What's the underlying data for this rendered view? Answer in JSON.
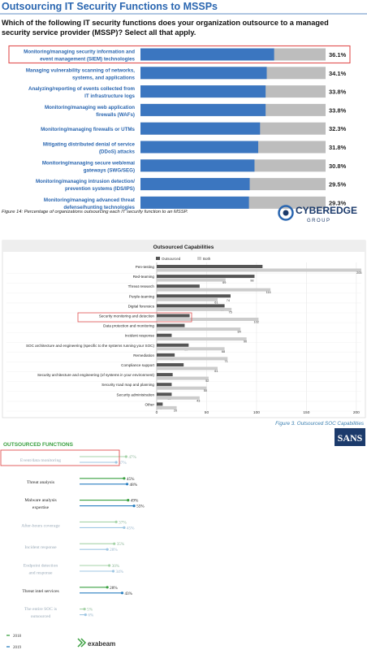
{
  "section1": {
    "title": "Outsourcing IT Security Functions to MSSPs",
    "question": [
      "Which of the following IT security functions does your organization outsource to a managed",
      "security service provider (MSSP)? Select all that apply."
    ],
    "caption": "Figure 14: Percentage of organizations outsourcing each IT security function to an MSSP.",
    "logo_text": "CYBEREDGE",
    "logo_sub": "GROUP",
    "colors": {
      "bar": "#3b76c0",
      "track": "#bdbdbd",
      "title": "#2a66b0",
      "highlight": "#e05050"
    }
  },
  "section2": {
    "title": "Outsourced Capabilities",
    "legend": [
      "Outsourced",
      "Both"
    ],
    "caption": "Figure 3. Outsourced SOC Capabilities",
    "logo_text": "SANS",
    "colors": {
      "outsourced": "#555555",
      "both": "#cccccc",
      "caption": "#3a7fb0",
      "logo": "#1b3a6b"
    }
  },
  "section3": {
    "title": "OUTSOURCED FUNCTIONS",
    "legend": [
      "2018",
      "2019"
    ],
    "brand": "exabeam",
    "colors": {
      "title": "#3aa040",
      "y2018": "#3aa040",
      "y2019": "#2a7fc0",
      "faded": "#9fc7e3"
    }
  },
  "chart_data": [
    {
      "type": "bar",
      "orientation": "horizontal",
      "categories": [
        [
          "Monitoring/managing security information and",
          "event management (SIEM) technologies"
        ],
        [
          "Managing vulnerability scanning of networks,",
          "systems, and applications"
        ],
        [
          "Analyzing/reporting of events collected from",
          "IT infrastructure logs"
        ],
        [
          "Monitoring/managing web application",
          "firewalls (WAFs)"
        ],
        [
          "Monitoring/managing firewalls or UTMs"
        ],
        [
          "Mitigating distributed denial of service",
          "(DDoS) attacks"
        ],
        [
          "Monitoring/managing secure web/emai",
          "gateways (SWG/SEG)"
        ],
        [
          "Monitoring/managing intrusion detection/",
          "prevention systems (IDS/IPS)"
        ],
        [
          "Monitoring/managing advanced threat",
          "defense/hunting technologies"
        ]
      ],
      "values": [
        36.1,
        34.1,
        33.8,
        33.8,
        32.3,
        31.8,
        30.8,
        29.5,
        29.3
      ],
      "labels": [
        "36.1%",
        "34.1%",
        "33.8%",
        "33.8%",
        "32.3%",
        "31.8%",
        "30.8%",
        "29.5%",
        "29.3%"
      ],
      "xlim": [
        0,
        50
      ],
      "highlight_index": 0
    },
    {
      "type": "bar",
      "orientation": "horizontal",
      "title": "Outsourced Capabilities",
      "categories": [
        "Pen-testing",
        "Red-teaming",
        "Threat research",
        "Purple-teaming",
        "Digital forensics",
        "Security monitoring and detection",
        "Data protection and monitoring",
        "Incident response",
        "SOC architecture and engineering (specific to the systems running your SOC)",
        "Remediation",
        "Compliance support",
        "Security architecture and engineering (of systems in your environment)",
        "Security road map and planning",
        "Security administration",
        "Other"
      ],
      "series": [
        {
          "name": "Outsourced",
          "values": [
            106,
            98,
            43,
            74,
            68,
            33,
            28,
            15,
            32,
            18,
            27,
            16,
            15,
            15,
            6
          ]
        },
        {
          "name": "Both",
          "values": [
            205,
            69,
            114,
            61,
            75,
            102,
            84,
            90,
            68,
            71,
            61,
            52,
            50,
            43,
            20
          ]
        }
      ],
      "xticks": [
        "0",
        "50",
        "100",
        "150",
        "200"
      ],
      "xlim": [
        0,
        205
      ],
      "highlight_index": 5
    },
    {
      "type": "bar",
      "orientation": "horizontal",
      "title": "OUTSOURCED FUNCTIONS",
      "categories": [
        [
          "Event/data monitoring"
        ],
        [
          "Threat analysis"
        ],
        [
          "Malware analysis",
          "expertise"
        ],
        [
          "After-hours coverage"
        ],
        [
          "Incident response"
        ],
        [
          "Endpoint detection",
          "and response"
        ],
        [
          "Threat intel services"
        ],
        [
          "The entire SOC is",
          "outsourced"
        ]
      ],
      "series": [
        {
          "name": "2018",
          "values": [
            47,
            45,
            49,
            37,
            35,
            30,
            28,
            5
          ]
        },
        {
          "name": "2019",
          "values": [
            37,
            48,
            55,
            45,
            28,
            34,
            43,
            6
          ]
        }
      ],
      "labels_2018": [
        "47%",
        "45%",
        "49%",
        "37%",
        "35%",
        "30%",
        "28%",
        "5%"
      ],
      "labels_2019": [
        "37%",
        "48%",
        "55%",
        "45%",
        "28%",
        "34%",
        "43%",
        "6%"
      ],
      "faded_rows": [
        0,
        3,
        4,
        5,
        7
      ],
      "highlight_index": 0
    }
  ]
}
